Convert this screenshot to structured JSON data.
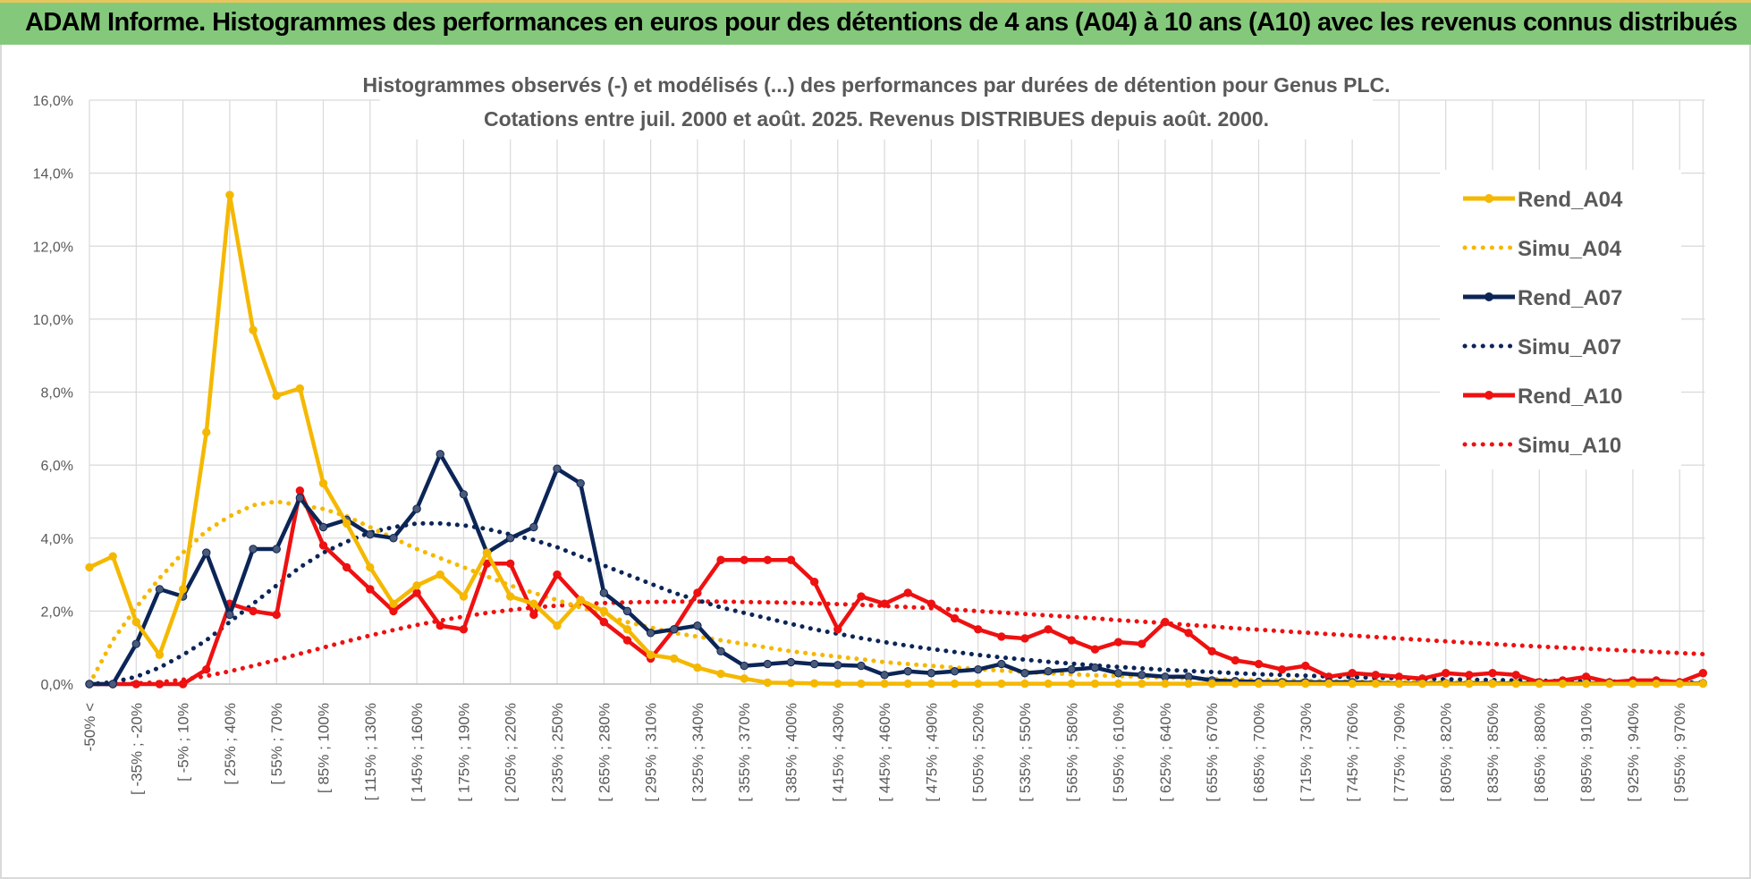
{
  "banner": {
    "title": "ADAM Informe. Histogrammes des performances en euros pour des détentions de 4 ans (A04) à 10 ans (A10) avec les revenus connus distribués"
  },
  "chart_data": {
    "type": "line",
    "title": "Histogrammes observés (-) et modélisés (...) des performances par durées de détention pour Genus PLC.",
    "subtitle": "Cotations entre juil. 2000 et août. 2025. Revenus DISTRIBUES depuis août. 2000.",
    "xlabel": "",
    "ylabel": "",
    "ylim": [
      0,
      16
    ],
    "y_ticks": [
      "0,0%",
      "2,0%",
      "4,0%",
      "6,0%",
      "8,0%",
      "10,0%",
      "12,0%",
      "14,0%",
      "16,0%"
    ],
    "y_tick_values": [
      0,
      2,
      4,
      6,
      8,
      10,
      12,
      14,
      16
    ],
    "grid": true,
    "legend_position": "right",
    "category_count": 70,
    "x_tick_labels": [
      {
        "index": 0,
        "label": "-50% <"
      },
      {
        "index": 2,
        "label": "[ -35% ; -20%"
      },
      {
        "index": 4,
        "label": "[ -5% ; 10%"
      },
      {
        "index": 6,
        "label": "[ 25% ; 40%"
      },
      {
        "index": 8,
        "label": "[ 55% ; 70%"
      },
      {
        "index": 10,
        "label": "[ 85% ; 100%"
      },
      {
        "index": 12,
        "label": "[ 115% ; 130%"
      },
      {
        "index": 14,
        "label": "[ 145% ; 160%"
      },
      {
        "index": 16,
        "label": "[ 175% ; 190%"
      },
      {
        "index": 18,
        "label": "[ 205% ; 220%"
      },
      {
        "index": 20,
        "label": "[ 235% ; 250%"
      },
      {
        "index": 22,
        "label": "[ 265% ; 280%"
      },
      {
        "index": 24,
        "label": "[ 295% ; 310%"
      },
      {
        "index": 26,
        "label": "[ 325% ; 340%"
      },
      {
        "index": 28,
        "label": "[ 355% ; 370%"
      },
      {
        "index": 30,
        "label": "[ 385% ; 400%"
      },
      {
        "index": 32,
        "label": "[ 415% ; 430%"
      },
      {
        "index": 34,
        "label": "[ 445% ; 460%"
      },
      {
        "index": 36,
        "label": "[ 475% ; 490%"
      },
      {
        "index": 38,
        "label": "[ 505% ; 520%"
      },
      {
        "index": 40,
        "label": "[ 535% ; 550%"
      },
      {
        "index": 42,
        "label": "[ 565% ; 580%"
      },
      {
        "index": 44,
        "label": "[ 595% ; 610%"
      },
      {
        "index": 46,
        "label": "[ 625% ; 640%"
      },
      {
        "index": 48,
        "label": "[ 655% ; 670%"
      },
      {
        "index": 50,
        "label": "[ 685% ; 700%"
      },
      {
        "index": 52,
        "label": "[ 715% ; 730%"
      },
      {
        "index": 54,
        "label": "[ 745% ; 760%"
      },
      {
        "index": 56,
        "label": "[ 775% ; 790%"
      },
      {
        "index": 58,
        "label": "[ 805% ; 820%"
      },
      {
        "index": 60,
        "label": "[ 835% ; 850%"
      },
      {
        "index": 62,
        "label": "[ 865% ; 880%"
      },
      {
        "index": 64,
        "label": "[ 895% ; 910%"
      },
      {
        "index": 66,
        "label": "[ 925% ; 940%"
      },
      {
        "index": 68,
        "label": "[ 955% ; 970%"
      }
    ],
    "series": [
      {
        "name": "Rend_A04",
        "color": "#f5b800",
        "style": "solid",
        "marker": true,
        "values": [
          3.2,
          3.5,
          1.7,
          0.8,
          2.6,
          6.9,
          13.4,
          9.7,
          7.9,
          8.1,
          5.5,
          4.4,
          3.2,
          2.2,
          2.7,
          3.0,
          2.4,
          3.6,
          2.4,
          2.2,
          1.6,
          2.3,
          2.0,
          1.5,
          0.8,
          0.7,
          0.45,
          0.28,
          0.15,
          0.04,
          0.03,
          0.02,
          0.01,
          0.01,
          0.01,
          0.01,
          0.01,
          0.01,
          0.01,
          0.01,
          0.01,
          0.01,
          0.01,
          0.01,
          0.01,
          0.01,
          0.01,
          0.01,
          0.01,
          0.01,
          0.01,
          0.01,
          0.01,
          0.01,
          0.01,
          0.01,
          0.01,
          0.01,
          0.01,
          0.01,
          0.01,
          0.01,
          0.01,
          0.01,
          0.01,
          0.01,
          0.01,
          0.01,
          0.01,
          0.01
        ]
      },
      {
        "name": "Simu_A04",
        "color": "#f5b800",
        "style": "dotted",
        "marker": false,
        "values": [
          0.0,
          1.2,
          2.1,
          2.9,
          3.6,
          4.2,
          4.6,
          4.9,
          5.0,
          4.9,
          4.8,
          4.6,
          4.3,
          4.0,
          3.7,
          3.45,
          3.2,
          2.95,
          2.7,
          2.5,
          2.3,
          2.1,
          1.9,
          1.7,
          1.55,
          1.4,
          1.3,
          1.2,
          1.1,
          1.0,
          0.9,
          0.82,
          0.75,
          0.68,
          0.6,
          0.55,
          0.5,
          0.45,
          0.41,
          0.37,
          0.33,
          0.3,
          0.27,
          0.24,
          0.22,
          0.2,
          0.18,
          0.16,
          0.14,
          0.12,
          0.11,
          0.1,
          0.09,
          0.08,
          0.07,
          0.06,
          0.05,
          0.05,
          0.04,
          0.04,
          0.03,
          0.03,
          0.03,
          0.02,
          0.02,
          0.02,
          0.02,
          0.02,
          0.01,
          0.01
        ]
      },
      {
        "name": "Rend_A07",
        "color": "#0c2557",
        "style": "solid",
        "marker": true,
        "values": [
          0.0,
          0.0,
          1.1,
          2.6,
          2.4,
          3.6,
          1.9,
          3.7,
          3.7,
          5.1,
          4.3,
          4.5,
          4.1,
          4.0,
          4.8,
          6.3,
          5.2,
          3.6,
          4.0,
          4.3,
          5.9,
          5.5,
          2.5,
          2.0,
          1.4,
          1.5,
          1.6,
          0.9,
          0.5,
          0.55,
          0.6,
          0.55,
          0.52,
          0.5,
          0.25,
          0.35,
          0.3,
          0.35,
          0.4,
          0.55,
          0.3,
          0.35,
          0.4,
          0.45,
          0.3,
          0.25,
          0.2,
          0.2,
          0.1,
          0.08,
          0.06,
          0.05,
          0.05,
          0.05,
          0.05,
          0.03,
          0.02,
          0.02,
          0.02,
          0.02,
          0.02,
          0.02,
          0.02,
          0.02,
          0.02,
          0.02,
          0.02,
          0.02,
          0.02,
          0.02
        ]
      },
      {
        "name": "Simu_A07",
        "color": "#0c2557",
        "style": "dotted",
        "marker": false,
        "values": [
          0.0,
          0.05,
          0.2,
          0.45,
          0.8,
          1.2,
          1.7,
          2.2,
          2.7,
          3.2,
          3.6,
          3.9,
          4.15,
          4.3,
          4.4,
          4.4,
          4.35,
          4.25,
          4.1,
          3.95,
          3.75,
          3.5,
          3.25,
          3.0,
          2.75,
          2.5,
          2.3,
          2.1,
          1.95,
          1.8,
          1.65,
          1.5,
          1.38,
          1.26,
          1.15,
          1.05,
          0.96,
          0.88,
          0.8,
          0.73,
          0.67,
          0.61,
          0.56,
          0.51,
          0.47,
          0.43,
          0.39,
          0.36,
          0.33,
          0.3,
          0.27,
          0.25,
          0.23,
          0.21,
          0.19,
          0.17,
          0.16,
          0.14,
          0.13,
          0.12,
          0.11,
          0.1,
          0.09,
          0.08,
          0.07,
          0.07,
          0.06,
          0.05,
          0.05,
          0.04
        ]
      },
      {
        "name": "Rend_A10",
        "color": "#ee1111",
        "style": "solid",
        "marker": true,
        "values": [
          0.0,
          0.0,
          0.0,
          0.0,
          0.0,
          0.4,
          2.2,
          2.0,
          1.9,
          5.3,
          3.8,
          3.2,
          2.6,
          2.0,
          2.5,
          1.6,
          1.5,
          3.3,
          3.3,
          1.9,
          3.0,
          2.3,
          1.7,
          1.2,
          0.7,
          1.5,
          2.5,
          3.4,
          3.4,
          3.4,
          3.4,
          2.8,
          1.5,
          2.4,
          2.2,
          2.5,
          2.2,
          1.8,
          1.5,
          1.3,
          1.25,
          1.5,
          1.2,
          0.95,
          1.15,
          1.1,
          1.7,
          1.4,
          0.9,
          0.65,
          0.55,
          0.4,
          0.5,
          0.2,
          0.3,
          0.25,
          0.2,
          0.15,
          0.3,
          0.25,
          0.3,
          0.25,
          0.05,
          0.1,
          0.2,
          0.05,
          0.1,
          0.1,
          0.05,
          0.3
        ]
      },
      {
        "name": "Simu_A10",
        "color": "#ee1111",
        "style": "dotted",
        "marker": false,
        "values": [
          0.0,
          0.0,
          0.02,
          0.05,
          0.12,
          0.22,
          0.35,
          0.5,
          0.66,
          0.83,
          1.0,
          1.17,
          1.33,
          1.48,
          1.62,
          1.74,
          1.85,
          1.95,
          2.03,
          2.1,
          2.15,
          2.19,
          2.22,
          2.24,
          2.25,
          2.26,
          2.26,
          2.26,
          2.25,
          2.24,
          2.23,
          2.21,
          2.19,
          2.17,
          2.14,
          2.11,
          2.08,
          2.04,
          2.0,
          1.96,
          1.92,
          1.88,
          1.84,
          1.8,
          1.75,
          1.71,
          1.67,
          1.62,
          1.58,
          1.53,
          1.49,
          1.45,
          1.41,
          1.37,
          1.33,
          1.29,
          1.25,
          1.21,
          1.17,
          1.13,
          1.1,
          1.06,
          1.03,
          1.0,
          0.97,
          0.94,
          0.91,
          0.88,
          0.85,
          0.82
        ]
      }
    ]
  }
}
